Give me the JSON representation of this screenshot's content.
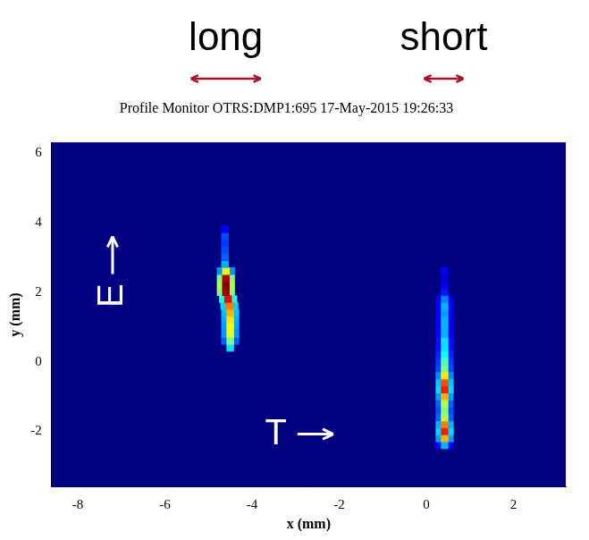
{
  "chart_data": {
    "type": "heatmap",
    "title": "Profile Monitor OTRS:DMP1:695 17-May-2015 19:26:33",
    "x_label": "x (mm)",
    "y_label": "y (mm)",
    "xlim": [
      -8.6,
      3.2
    ],
    "xticks": [
      -8,
      -6,
      -4,
      -2,
      0,
      2
    ],
    "ylim": [
      -3.6,
      6.3
    ],
    "yticks": [
      -2,
      0,
      2,
      4,
      6
    ],
    "grid": false,
    "zlim": [
      0,
      1
    ],
    "cells": [
      [
        -4.62,
        0.6,
        0.22
      ],
      [
        -4.38,
        0.6,
        0.22
      ],
      [
        -4.62,
        0.8,
        0.27
      ],
      [
        -4.38,
        0.8,
        0.27
      ],
      [
        -4.62,
        1.0,
        0.28
      ],
      [
        -4.38,
        1.0,
        0.28
      ],
      [
        -4.62,
        1.2,
        0.29
      ],
      [
        -4.38,
        1.2,
        0.29
      ],
      [
        -4.62,
        1.4,
        0.31
      ],
      [
        -4.38,
        1.4,
        0.31
      ],
      [
        -4.64,
        1.6,
        0.33
      ],
      [
        -4.4,
        1.6,
        0.33
      ],
      [
        -4.67,
        1.8,
        0.4
      ],
      [
        -4.43,
        1.8,
        0.4
      ],
      [
        -4.72,
        2.0,
        0.5
      ],
      [
        -4.48,
        2.0,
        0.5
      ],
      [
        -4.72,
        2.2,
        0.55
      ],
      [
        -4.48,
        2.2,
        0.55
      ],
      [
        -4.72,
        2.4,
        0.5
      ],
      [
        -4.48,
        2.4,
        0.5
      ],
      [
        -4.72,
        2.6,
        0.27
      ],
      [
        -4.48,
        2.6,
        0.27
      ],
      [
        0.3,
        -2.4,
        0.12
      ],
      [
        0.54,
        -2.4,
        0.12
      ],
      [
        0.3,
        -2.2,
        0.28
      ],
      [
        0.54,
        -2.2,
        0.28
      ],
      [
        0.3,
        -2.0,
        0.34
      ],
      [
        0.54,
        -2.0,
        0.34
      ],
      [
        0.3,
        -1.8,
        0.3
      ],
      [
        0.54,
        -1.8,
        0.3
      ],
      [
        0.3,
        -1.6,
        0.22
      ],
      [
        0.54,
        -1.6,
        0.22
      ],
      [
        0.3,
        -1.4,
        0.2
      ],
      [
        0.54,
        -1.4,
        0.2
      ],
      [
        0.3,
        -1.2,
        0.22
      ],
      [
        0.54,
        -1.2,
        0.22
      ],
      [
        0.3,
        -1.0,
        0.28
      ],
      [
        0.54,
        -1.0,
        0.28
      ],
      [
        0.3,
        -0.8,
        0.34
      ],
      [
        0.54,
        -0.8,
        0.34
      ],
      [
        0.3,
        -0.6,
        0.32
      ],
      [
        0.54,
        -0.6,
        0.32
      ],
      [
        0.3,
        -0.4,
        0.26
      ],
      [
        0.54,
        -0.4,
        0.26
      ],
      [
        0.3,
        -0.2,
        0.2
      ],
      [
        0.54,
        -0.2,
        0.2
      ],
      [
        0.3,
        0.0,
        0.18
      ],
      [
        0.54,
        0.0,
        0.18
      ],
      [
        0.3,
        0.2,
        0.16
      ],
      [
        0.54,
        0.2,
        0.16
      ],
      [
        0.3,
        0.4,
        0.14
      ],
      [
        0.54,
        0.4,
        0.14
      ],
      [
        0.3,
        0.6,
        0.14
      ],
      [
        0.54,
        0.6,
        0.14
      ],
      [
        0.3,
        0.8,
        0.12
      ],
      [
        0.54,
        0.8,
        0.12
      ],
      [
        0.3,
        1.0,
        0.12
      ],
      [
        0.54,
        1.0,
        0.12
      ],
      [
        0.3,
        1.2,
        0.12
      ],
      [
        0.54,
        1.2,
        0.12
      ],
      [
        0.3,
        1.4,
        0.11
      ],
      [
        0.54,
        1.4,
        0.11
      ],
      [
        0.3,
        1.6,
        0.12
      ],
      [
        0.54,
        1.6,
        0.12
      ],
      [
        0.3,
        1.8,
        0.1
      ],
      [
        0.54,
        1.8,
        0.1
      ],
      [
        -4.5,
        0.4,
        0.35
      ],
      [
        -4.5,
        0.6,
        0.5
      ],
      [
        -4.5,
        0.8,
        0.6
      ],
      [
        -4.5,
        1.0,
        0.62
      ],
      [
        -4.5,
        1.2,
        0.65
      ],
      [
        -4.5,
        1.4,
        0.7
      ],
      [
        -4.52,
        1.6,
        0.75
      ],
      [
        -4.55,
        1.8,
        0.88
      ],
      [
        -4.6,
        2.0,
        0.97
      ],
      [
        -4.6,
        2.2,
        1.0
      ],
      [
        -4.6,
        2.4,
        0.95
      ],
      [
        -4.6,
        2.6,
        0.6
      ],
      [
        -4.62,
        2.8,
        0.3
      ],
      [
        -4.62,
        3.0,
        0.22
      ],
      [
        -4.62,
        3.2,
        0.2
      ],
      [
        -4.62,
        3.4,
        0.18
      ],
      [
        -4.62,
        3.6,
        0.2
      ],
      [
        -4.62,
        3.8,
        0.12
      ],
      [
        0.42,
        -2.4,
        0.3
      ],
      [
        0.42,
        -2.2,
        0.7
      ],
      [
        0.42,
        -2.0,
        0.85
      ],
      [
        0.42,
        -1.8,
        0.75
      ],
      [
        0.42,
        -1.6,
        0.55
      ],
      [
        0.42,
        -1.4,
        0.5
      ],
      [
        0.42,
        -1.2,
        0.55
      ],
      [
        0.42,
        -1.0,
        0.7
      ],
      [
        0.42,
        -0.8,
        0.85
      ],
      [
        0.42,
        -0.6,
        0.8
      ],
      [
        0.42,
        -0.4,
        0.65
      ],
      [
        0.42,
        -0.2,
        0.5
      ],
      [
        0.42,
        0.0,
        0.45
      ],
      [
        0.42,
        0.2,
        0.4
      ],
      [
        0.42,
        0.4,
        0.35
      ],
      [
        0.42,
        0.6,
        0.35
      ],
      [
        0.42,
        0.8,
        0.3
      ],
      [
        0.42,
        1.0,
        0.3
      ],
      [
        0.42,
        1.2,
        0.3
      ],
      [
        0.42,
        1.4,
        0.28
      ],
      [
        0.42,
        1.6,
        0.3
      ],
      [
        0.42,
        1.8,
        0.25
      ],
      [
        0.42,
        2.0,
        0.15
      ],
      [
        0.42,
        2.2,
        0.1
      ],
      [
        0.42,
        2.4,
        0.08
      ],
      [
        0.42,
        2.6,
        0.12
      ]
    ],
    "annotations": [
      {
        "text": "long",
        "x": -4.6
      },
      {
        "text": "short",
        "x": 0.4
      },
      {
        "text": "E",
        "x": -7.2,
        "y": 1.9,
        "marker": "up"
      },
      {
        "text": "T",
        "x": -3.45,
        "y": -2.08,
        "marker": "right"
      }
    ]
  }
}
